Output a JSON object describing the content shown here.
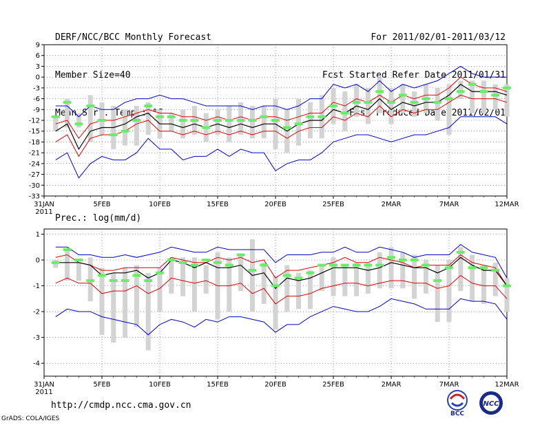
{
  "header": {
    "title": "DERF/NCC/BCC Monthly Forecast",
    "member_size": "Member Size=40",
    "variable": "Mean Surf. Temp.: °C",
    "forecast_period": "For 2011/02/01-2011/03/12",
    "started_refer": "Fcst Started Refer Date 2011/01/31",
    "produced": "Fcst Produced Date 2011/02/01"
  },
  "footer": {
    "url": "http://cmdp.ncc.cma.gov.cn",
    "credit": "GrADS: COLA/IGES",
    "logo_bcc": "BCC",
    "logo_ncc": "NCC"
  },
  "colors": {
    "max_line": "#0000cc",
    "min_line": "#0000cc",
    "upper_line": "#dd0000",
    "mean_line": "#000000",
    "box": "#d3d3d3",
    "obs": "#66ee66",
    "grid": "#555555"
  },
  "chart_data": [
    {
      "type": "line",
      "name": "temperature",
      "title": "",
      "ylabel": "Mean Surf. Temp.: °C",
      "xlabel": "",
      "ylim": [
        -33,
        9
      ],
      "yticks": [
        9,
        6,
        3,
        0,
        -3,
        -6,
        -9,
        -12,
        -15,
        -18,
        -21,
        -24,
        -27,
        -30,
        -33
      ],
      "x_ticks": [
        {
          "day": 0,
          "label": "31JAN"
        },
        {
          "day": 5,
          "label": "5FEB"
        },
        {
          "day": 10,
          "label": "10FEB"
        },
        {
          "day": 15,
          "label": "15FEB"
        },
        {
          "day": 20,
          "label": "20FEB"
        },
        {
          "day": 25,
          "label": "25FEB"
        },
        {
          "day": 30,
          "label": "2MAR"
        },
        {
          "day": 35,
          "label": "7MAR"
        },
        {
          "day": 40,
          "label": "12MAR"
        }
      ],
      "x_sublabel": "2011",
      "days": [
        1,
        2,
        3,
        4,
        5,
        6,
        7,
        8,
        9,
        10,
        11,
        12,
        13,
        14,
        15,
        16,
        17,
        18,
        19,
        20,
        21,
        22,
        23,
        24,
        25,
        26,
        27,
        28,
        29,
        30,
        31,
        32,
        33,
        34,
        35,
        36,
        37,
        38,
        39,
        40
      ],
      "series": [
        {
          "name": "max",
          "values": [
            -8,
            -8,
            -11,
            -8,
            -9,
            -9,
            -7,
            -6,
            -6,
            -5,
            -6,
            -6,
            -7,
            -8,
            -8,
            -8,
            -8,
            -9,
            -8,
            -8,
            -9,
            -8,
            -6,
            -6,
            -2,
            -3,
            -2,
            -4,
            -1,
            -4,
            -2,
            -3,
            -2,
            -1,
            1,
            3,
            1,
            0,
            0,
            0
          ]
        },
        {
          "name": "upper",
          "values": [
            -13,
            -12,
            -17,
            -13,
            -12,
            -12,
            -11,
            -10,
            -9,
            -10,
            -10,
            -11,
            -11,
            -12,
            -11,
            -12,
            -11,
            -12,
            -11,
            -11,
            -12,
            -11,
            -10,
            -10,
            -7,
            -8,
            -6,
            -7,
            -5,
            -7,
            -5,
            -6,
            -5,
            -5,
            -3,
            0,
            -2,
            -3,
            -3,
            -4
          ]
        },
        {
          "name": "mean",
          "values": [
            -15,
            -13,
            -20,
            -15,
            -14,
            -14,
            -13,
            -11,
            -10,
            -13,
            -13,
            -14,
            -13,
            -14,
            -13,
            -14,
            -13,
            -14,
            -13,
            -13,
            -15,
            -13,
            -12,
            -12,
            -9,
            -10,
            -8,
            -9,
            -6,
            -9,
            -7,
            -8,
            -7,
            -7,
            -5,
            -2,
            -4,
            -4,
            -4,
            -5
          ]
        },
        {
          "name": "lower",
          "values": [
            -18,
            -16,
            -22,
            -17,
            -16,
            -16,
            -15,
            -13,
            -12,
            -15,
            -15,
            -16,
            -15,
            -16,
            -15,
            -16,
            -15,
            -16,
            -15,
            -15,
            -17,
            -15,
            -14,
            -14,
            -11,
            -12,
            -10,
            -11,
            -8,
            -11,
            -9,
            -10,
            -9,
            -9,
            -7,
            -5,
            -6,
            -6,
            -6,
            -7
          ]
        },
        {
          "name": "min",
          "values": [
            -23,
            -21,
            -28,
            -24,
            -22,
            -23,
            -23,
            -21,
            -17,
            -20,
            -20,
            -23,
            -22,
            -22,
            -20,
            -22,
            -20,
            -21,
            -21,
            -26,
            -24,
            -23,
            -23,
            -21,
            -18,
            -17,
            -16,
            -16,
            -17,
            -18,
            -17,
            -16,
            -16,
            -15,
            -14,
            -11,
            -11,
            -11,
            -11,
            -13
          ]
        },
        {
          "name": "box_high",
          "values": [
            -11,
            -6,
            -10,
            -5,
            -7,
            -8,
            -9,
            -8,
            -7,
            -9,
            -10,
            -9,
            -8,
            -10,
            -9,
            -8,
            -7,
            -8,
            -8,
            -6,
            -9,
            -6,
            -7,
            -5,
            -3,
            -4,
            -2,
            -3,
            0,
            -3,
            -2,
            -4,
            -2,
            -3,
            -2,
            -1,
            -1,
            -1,
            -2,
            -2
          ]
        },
        {
          "name": "box_low",
          "values": [
            -15,
            -14,
            -14,
            -18,
            -16,
            -20,
            -19,
            -19,
            -16,
            -17,
            -15,
            -17,
            -16,
            -18,
            -16,
            -18,
            -16,
            -17,
            -17,
            -20,
            -21,
            -19,
            -17,
            -17,
            -13,
            -15,
            -11,
            -13,
            -10,
            -13,
            -10,
            -11,
            -10,
            -12,
            -16,
            -6,
            -10,
            -10,
            -9,
            -11
          ]
        },
        {
          "name": "obs",
          "values": [
            -11,
            -7,
            -13,
            -8,
            -12,
            -16,
            -15,
            -12,
            -8,
            -11,
            -11,
            -12,
            -12,
            -14,
            -12,
            -12,
            -12,
            -12,
            -11,
            -12,
            -14,
            -13,
            -11,
            -11,
            -8,
            -10,
            -7,
            -7,
            -4,
            -7,
            -5,
            -7,
            -6,
            -7,
            -6,
            -4,
            -2,
            -4,
            -5,
            -3
          ]
        }
      ]
    },
    {
      "type": "line",
      "name": "precipitation",
      "title": "",
      "ylabel": "Prec.: log(mm/d)",
      "xlabel": "",
      "ylim": [
        -4.5,
        1.2
      ],
      "yticks": [
        1,
        0,
        -1,
        -2,
        -3,
        -4
      ],
      "x_ticks": [
        {
          "day": 0,
          "label": "31JAN"
        },
        {
          "day": 5,
          "label": "5FEB"
        },
        {
          "day": 10,
          "label": "10FEB"
        },
        {
          "day": 15,
          "label": "15FEB"
        },
        {
          "day": 20,
          "label": "20FEB"
        },
        {
          "day": 25,
          "label": "25FEB"
        },
        {
          "day": 30,
          "label": "2MAR"
        },
        {
          "day": 35,
          "label": "7MAR"
        },
        {
          "day": 40,
          "label": "12MAR"
        }
      ],
      "x_sublabel": "2011",
      "days": [
        1,
        2,
        3,
        4,
        5,
        6,
        7,
        8,
        9,
        10,
        11,
        12,
        13,
        14,
        15,
        16,
        17,
        18,
        19,
        20,
        21,
        22,
        23,
        24,
        25,
        26,
        27,
        28,
        29,
        30,
        31,
        32,
        33,
        34,
        35,
        36,
        37,
        38,
        39,
        40
      ],
      "series": [
        {
          "name": "max",
          "values": [
            0.5,
            0.5,
            0.2,
            0.2,
            0.1,
            0.1,
            0.2,
            0.1,
            0.2,
            0.3,
            0.5,
            0.4,
            0.3,
            0.3,
            0.5,
            0.4,
            0.4,
            0.4,
            0.4,
            -0.1,
            0.2,
            0.2,
            0.2,
            0.3,
            0.3,
            0.5,
            0.3,
            0.3,
            0.5,
            0.4,
            0.3,
            0.1,
            0.2,
            0.2,
            0.2,
            0.6,
            0.3,
            0.2,
            0.1,
            -0.7
          ]
        },
        {
          "name": "upper",
          "values": [
            0.1,
            0.2,
            -0.1,
            -0.2,
            -0.4,
            -0.4,
            -0.3,
            -0.3,
            -0.3,
            -0.3,
            0.1,
            0.0,
            -0.1,
            -0.1,
            0.1,
            0.0,
            0.1,
            -0.1,
            0.0,
            -0.7,
            -0.4,
            -0.4,
            -0.3,
            -0.2,
            -0.1,
            0.1,
            -0.1,
            -0.1,
            0.1,
            0.0,
            -0.1,
            -0.3,
            -0.2,
            -0.2,
            -0.2,
            0.2,
            -0.1,
            -0.2,
            -0.3,
            -1.0
          ]
        },
        {
          "name": "mean",
          "values": [
            -0.1,
            -0.1,
            -0.1,
            -0.2,
            -0.6,
            -0.5,
            -0.5,
            -0.4,
            -0.7,
            -0.5,
            0.0,
            -0.1,
            -0.3,
            -0.1,
            -0.3,
            -0.3,
            -0.2,
            -0.6,
            -0.5,
            -1.1,
            -0.7,
            -0.8,
            -0.7,
            -0.5,
            -0.3,
            -0.3,
            -0.3,
            -0.4,
            -0.3,
            -0.1,
            -0.2,
            -0.3,
            -0.3,
            -0.5,
            -0.3,
            0.1,
            -0.2,
            -0.4,
            -0.4,
            -1.0
          ]
        },
        {
          "name": "lower",
          "values": [
            -0.9,
            -0.7,
            -0.9,
            -0.9,
            -1.3,
            -1.2,
            -1.2,
            -1.0,
            -1.3,
            -1.1,
            -0.7,
            -0.8,
            -0.9,
            -0.8,
            -1.0,
            -1.0,
            -0.9,
            -1.3,
            -1.1,
            -1.7,
            -1.4,
            -1.4,
            -1.3,
            -1.1,
            -1.0,
            -0.9,
            -0.9,
            -1.0,
            -0.9,
            -0.8,
            -0.8,
            -0.9,
            -0.9,
            -1.1,
            -1.0,
            -0.6,
            -0.9,
            -1.0,
            -1.0,
            -1.5
          ]
        },
        {
          "name": "min",
          "values": [
            -2.2,
            -1.9,
            -2.0,
            -2.0,
            -2.2,
            -2.3,
            -2.4,
            -2.5,
            -2.9,
            -2.5,
            -2.3,
            -2.4,
            -2.6,
            -2.3,
            -2.4,
            -2.2,
            -2.2,
            -2.3,
            -2.4,
            -2.8,
            -2.5,
            -2.5,
            -2.2,
            -2.0,
            -1.8,
            -1.9,
            -2.0,
            -2.0,
            -1.8,
            -1.5,
            -1.6,
            -1.7,
            -1.9,
            -1.9,
            -1.9,
            -1.5,
            -1.6,
            -1.6,
            -1.7,
            -2.3
          ]
        },
        {
          "name": "box_high",
          "values": [
            0.0,
            0.4,
            -0.1,
            0.1,
            -0.3,
            -0.5,
            -0.3,
            -0.2,
            -0.5,
            -0.3,
            0.1,
            0.1,
            0.1,
            -0.2,
            0.3,
            0.1,
            0.2,
            0.8,
            -0.1,
            -0.6,
            -0.2,
            -0.5,
            -0.4,
            -0.2,
            0.1,
            -0.2,
            -0.1,
            -0.1,
            0.3,
            0.5,
            0.3,
            0.2,
            0.0,
            -0.2,
            0.0,
            0.5,
            0.2,
            -0.2,
            -0.1,
            -0.7
          ]
        },
        {
          "name": "box_low",
          "values": [
            -0.3,
            -0.8,
            -0.8,
            -1.6,
            -2.9,
            -3.2,
            -3.0,
            -2.6,
            -3.5,
            -2.0,
            -1.3,
            -1.4,
            -2.0,
            -1.3,
            -2.3,
            -2.0,
            -1.2,
            -2.0,
            -1.7,
            -2.7,
            -2.0,
            -1.9,
            -1.9,
            -1.2,
            -1.4,
            -1.4,
            -1.4,
            -1.3,
            -1.1,
            -1.1,
            -1.1,
            -1.5,
            -1.3,
            -2.4,
            -2.4,
            -1.2,
            -1.6,
            -1.7,
            -1.4,
            -2.0
          ]
        },
        {
          "name": "obs",
          "values": [
            -0.1,
            0.4,
            0.0,
            -0.8,
            -0.6,
            -0.8,
            -0.8,
            -0.6,
            -0.8,
            -0.5,
            0.0,
            -0.1,
            -0.2,
            0.0,
            -0.1,
            -0.2,
            0.2,
            -0.4,
            -0.2,
            -1.0,
            -0.6,
            -0.7,
            -0.5,
            -0.2,
            -0.2,
            -0.2,
            -0.2,
            -0.2,
            -0.2,
            0.1,
            0.0,
            0.0,
            -0.2,
            -0.8,
            -0.3,
            0.3,
            -0.3,
            -0.3,
            -0.4,
            -1.0
          ]
        }
      ]
    }
  ]
}
